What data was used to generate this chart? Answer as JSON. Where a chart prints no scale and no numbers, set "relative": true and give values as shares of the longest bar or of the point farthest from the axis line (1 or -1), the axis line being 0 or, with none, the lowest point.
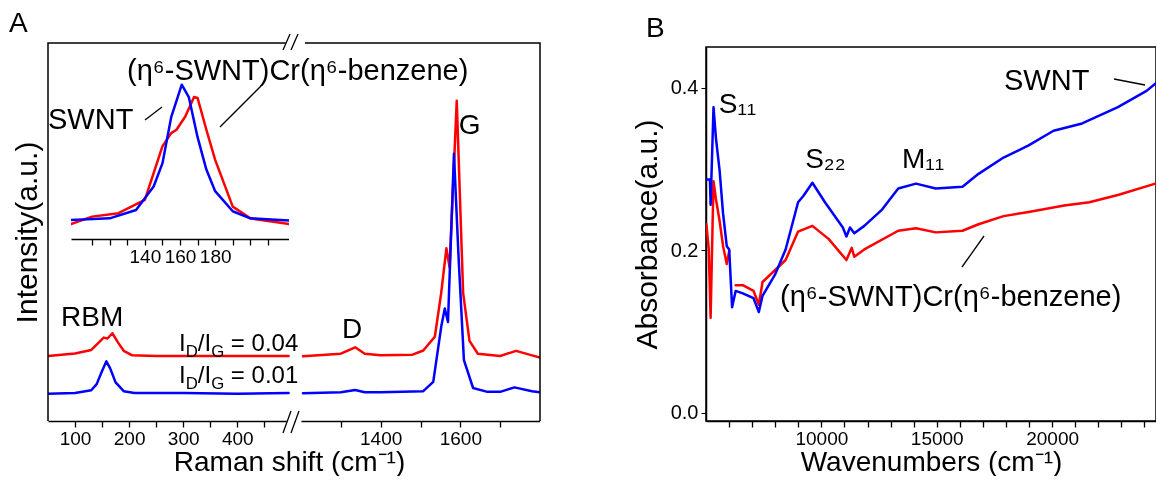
{
  "chart_data": [
    {
      "type": "line",
      "xlabel": "Raman shift (cm⁻¹)",
      "ylabel": "Intensity(a.u.)",
      "relative": true,
      "xlim": [
        50,
        505
      ],
      "xticks": [
        100,
        {
          "value": 150,
          "label": null
        },
        200,
        {
          "value": 250,
          "label": null
        },
        300,
        {
          "value": 350,
          "label": null
        },
        400,
        {
          "value": 450,
          "label": null
        }
      ],
      "series": [
        {
          "color": "#ff0000",
          "x": [
            50,
            100,
            130,
            140,
            153,
            160,
            169,
            180,
            190,
            205,
            250,
            350,
            495
          ],
          "values": [
            0.74,
            0.77,
            0.81,
            0.87,
            0.95,
            0.94,
            1,
            0.89,
            0.8,
            0.75,
            0.74,
            0.74,
            0.74
          ]
        },
        {
          "color": "#0000ff",
          "x": [
            50,
            100,
            130,
            140,
            150,
            158,
            165,
            175,
            190,
            210,
            300,
            400,
            495
          ],
          "values": [
            0.31,
            0.32,
            0.35,
            0.42,
            0.57,
            0.68,
            0.6,
            0.44,
            0.34,
            0.32,
            0.32,
            0.31,
            0.32
          ]
        }
      ],
      "annotations": [
        "A",
        "RBM",
        "I$_{D}$/I$_{G}$ = 0.04",
        "I$_{D}$/I$_{G}$ = 0.01"
      ]
    },
    {
      "type": "line",
      "relative": true,
      "xlim": [
        1200,
        1800
      ],
      "xticks": [
        {
          "value": 1300,
          "label": null
        },
        1400,
        {
          "value": 1500,
          "label": null
        },
        1600,
        {
          "value": 1700,
          "label": null
        }
      ],
      "series": [
        {
          "color": "#ff0000",
          "x": [
            1205,
            1300,
            1336,
            1360,
            1400,
            1480,
            1507,
            1536,
            1552,
            1565,
            1573,
            1591,
            1607,
            1623,
            1644,
            1700,
            1740,
            1780,
            1800
          ],
          "values": [
            0.202,
            0.21,
            0.23,
            0.21,
            0.205,
            0.207,
            0.22,
            0.263,
            0.4,
            0.539,
            0.48,
            1.0,
            0.4,
            0.25,
            0.21,
            0.203,
            0.219,
            0.205,
            0.198
          ]
        },
        {
          "color": "#0000ff",
          "x": [
            1205,
            1300,
            1336,
            1360,
            1400,
            1480,
            1507,
            1532,
            1552,
            1561,
            1569,
            1584,
            1596,
            1609,
            1632,
            1668,
            1700,
            1736,
            1780,
            1800
          ],
          "values": [
            0.087,
            0.09,
            0.097,
            0.09,
            0.09,
            0.092,
            0.093,
            0.122,
            0.294,
            0.351,
            0.309,
            0.834,
            0.5,
            0.19,
            0.103,
            0.091,
            0.091,
            0.105,
            0.093,
            0.09
          ]
        }
      ],
      "annotations": [
        {
          "text": "D",
          "x": 1336,
          "y": 0.23
        },
        {
          "text": "G",
          "x": 1591,
          "y": 1.0
        }
      ]
    },
    {
      "type": "line",
      "relative": true,
      "xlim": [
        98,
        222
      ],
      "xticks": [
        {
          "value": 110,
          "label": null
        },
        {
          "value": 120,
          "label": null
        },
        {
          "value": 130,
          "label": null
        },
        140,
        {
          "value": 150,
          "label": null
        },
        160,
        {
          "value": 170,
          "label": null
        },
        180,
        {
          "value": 190,
          "label": null
        },
        {
          "value": 200,
          "label": null
        },
        {
          "value": 210,
          "label": null
        }
      ],
      "series": [
        {
          "name": "(η⁶-SWNT)Cr(η⁶-benzene)",
          "color": "#ff0000",
          "x": [
            98,
            110,
            125,
            140,
            150,
            155,
            158,
            163,
            168,
            170,
            175,
            180,
            190,
            200,
            222
          ],
          "values": [
            0.097,
            0.145,
            0.167,
            0.253,
            0.6,
            0.686,
            0.708,
            0.794,
            0.92,
            0.914,
            0.708,
            0.513,
            0.21,
            0.134,
            0.097
          ]
        },
        {
          "name": "SWNT",
          "color": "#0000ff",
          "x": [
            98,
            120,
            135,
            145,
            150,
            155,
            161,
            165,
            170,
            175,
            180,
            190,
            200,
            222
          ],
          "values": [
            0.123,
            0.134,
            0.188,
            0.34,
            0.49,
            0.79,
            1.0,
            0.92,
            0.66,
            0.45,
            0.31,
            0.18,
            0.134,
            0.12
          ]
        }
      ]
    },
    {
      "type": "line",
      "title": "B",
      "xlabel": "Wavenumbers (cm⁻¹)",
      "ylabel": "Absorbance(a.u.)",
      "xlim": [
        5000,
        24500
      ],
      "ylim": [
        -0.01,
        0.45
      ],
      "xticks": [
        {
          "value": 6000,
          "label": null
        },
        {
          "value": 7000,
          "label": null
        },
        {
          "value": 8000,
          "label": null
        },
        {
          "value": 9000,
          "label": null
        },
        10000,
        {
          "value": 11000,
          "label": null
        },
        {
          "value": 12000,
          "label": null
        },
        {
          "value": 13000,
          "label": null
        },
        {
          "value": 14000,
          "label": null
        },
        15000,
        {
          "value": 16000,
          "label": null
        },
        {
          "value": 17000,
          "label": null
        },
        {
          "value": 18000,
          "label": null
        },
        {
          "value": 19000,
          "label": null
        },
        20000,
        {
          "value": 21000,
          "label": null
        },
        {
          "value": 22000,
          "label": null
        },
        {
          "value": 23000,
          "label": null
        },
        {
          "value": 24000,
          "label": null
        }
      ],
      "yticks": [
        {
          "value": 0,
          "label": "0.0"
        },
        {
          "value": 0.2,
          "label": "0.2"
        },
        {
          "value": 0.4,
          "label": "0.4"
        }
      ],
      "series": [
        {
          "name": "(η⁶-SWNT)Cr(η⁶-benzene)",
          "color": "#ff0000",
          "x": [
            5015,
            5120,
            5200,
            5325,
            5430,
            5590,
            5740,
            5900,
            6006,
            6130,
            6285,
            6595,
            7060,
            7290,
            7450,
            8450,
            8990,
            9610,
            10310,
            11085,
            11315,
            11425,
            11860,
            13330,
            14100,
            14955,
            16115,
            16810,
            17895,
            18980,
            20525,
            21610,
            22850,
            24470
          ],
          "values": [
            0.232,
            0.201,
            0.117,
            0.285,
            0.263,
            0.236,
            0.205,
            0.183,
            0.199,
            null,
            0.157,
            0.157,
            0.15,
            0.133,
            0.161,
            0.188,
            0.223,
            0.23,
            0.214,
            0.188,
            0.203,
            0.192,
            0.201,
            0.224,
            0.227,
            0.222,
            0.224,
            0.232,
            0.242,
            0.247,
            0.255,
            0.259,
            0.268,
            0.282
          ]
        },
        {
          "name": "SWNT",
          "color": "#0000ff",
          "x": [
            5046,
            5170,
            5200,
            5325,
            5430,
            5590,
            5740,
            5900,
            6006,
            6130,
            6285,
            6595,
            7060,
            7290,
            7450,
            7990,
            8450,
            8990,
            9225,
            9610,
            10155,
            10930,
            11085,
            11240,
            11425,
            11860,
            12630,
            13330,
            14100,
            14955,
            16115,
            16810,
            17895,
            18980,
            20060,
            21300,
            22850,
            24090,
            24470
          ],
          "values": [
            0.287,
            0.287,
            0.256,
            0.376,
            0.338,
            0.298,
            0.245,
            0.205,
            0.201,
            0.13,
            0.15,
            0.147,
            0.141,
            0.124,
            0.144,
            0.17,
            0.201,
            0.259,
            0.267,
            0.283,
            0.259,
            0.228,
            0.217,
            0.228,
            0.221,
            0.23,
            0.25,
            0.276,
            0.282,
            0.276,
            0.278,
            0.294,
            0.314,
            0.329,
            0.347,
            0.356,
            0.376,
            0.396,
            0.405
          ]
        }
      ],
      "annotations": [
        {
          "text": "S₁₁",
          "x": 5325,
          "y": 0.376
        },
        {
          "text": "S₂₂",
          "x": 9610,
          "y": 0.283
        },
        {
          "text": "M₁₁",
          "x": 14100,
          "y": 0.282
        }
      ]
    }
  ]
}
